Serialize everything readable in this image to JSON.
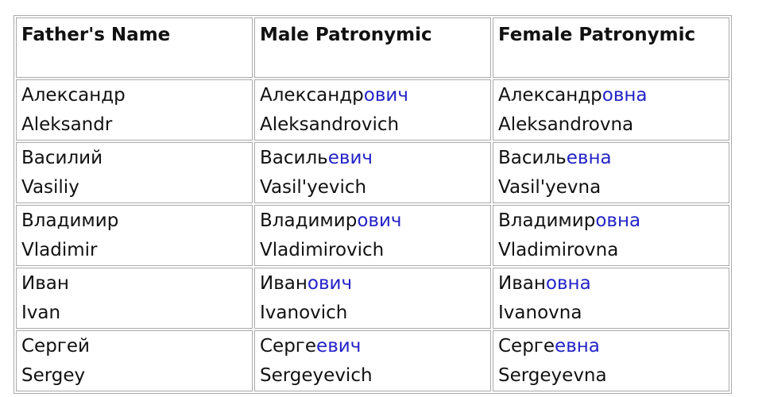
{
  "table": {
    "header": [
      "Father's Name",
      "Male Patronymic",
      "Female Patronymic"
    ],
    "rows": [
      {
        "father": {
          "cyr": "Александр",
          "lat": "Aleksandr"
        },
        "male": {
          "stem": "Александр",
          "suffix": "ович",
          "lat": "Aleksandrovich"
        },
        "female": {
          "stem": "Александр",
          "suffix": "овна",
          "lat": "Aleksandrovna"
        }
      },
      {
        "father": {
          "cyr": "Василий",
          "lat": "Vasiliy"
        },
        "male": {
          "stem": "Василь",
          "suffix": "евич",
          "lat": "Vasil'yevich"
        },
        "female": {
          "stem": "Василь",
          "suffix": "евна",
          "lat": "Vasil'yevna"
        }
      },
      {
        "father": {
          "cyr": "Владимир",
          "lat": "Vladimir"
        },
        "male": {
          "stem": "Владимир",
          "suffix": "ович",
          "lat": "Vladimirovich"
        },
        "female": {
          "stem": "Владимир",
          "suffix": "овна",
          "lat": "Vladimirovna"
        }
      },
      {
        "father": {
          "cyr": "Иван",
          "lat": "Ivan"
        },
        "male": {
          "stem": "Иван",
          "suffix": "ович",
          "lat": "Ivanovich"
        },
        "female": {
          "stem": "Иван",
          "suffix": "овна",
          "lat": "Ivanovna"
        }
      },
      {
        "father": {
          "cyr": "Сергей",
          "lat": "Sergey"
        },
        "male": {
          "stem": "Серге",
          "suffix": "евич",
          "lat": "Sergeyevich"
        },
        "female": {
          "stem": "Серге",
          "suffix": "евна",
          "lat": "Sergeyevna"
        }
      }
    ]
  }
}
